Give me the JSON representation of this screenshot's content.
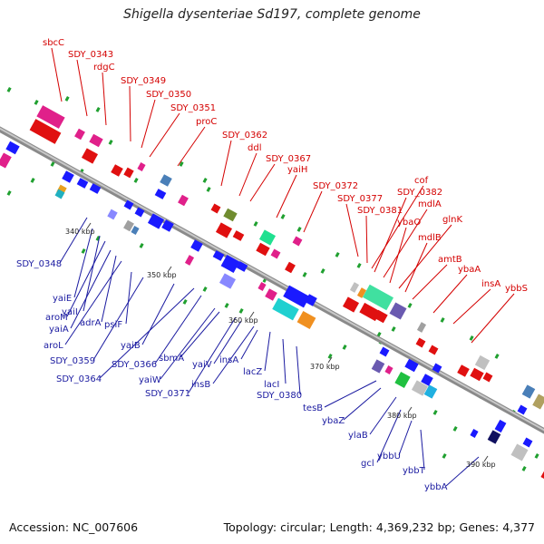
{
  "title": "Shigella dysenteriae Sd197, complete genome",
  "accession": "Accession: NC_007606",
  "summary": "Topology: circular; Length: 4,369,232 bp; Genes: 4,377",
  "colors": {
    "forward": "#d40000",
    "reverse": "#1a1aa0",
    "backbone": "#999999"
  },
  "ticks": [
    {
      "label": "340 kbp"
    },
    {
      "label": "350 kbp"
    },
    {
      "label": "360 kbp"
    },
    {
      "label": "370 kbp"
    },
    {
      "label": "380 kbp"
    },
    {
      "label": "390 kbp"
    }
  ],
  "forward_genes": [
    "sbcC",
    "SDY_0343",
    "rdgC",
    "SDY_0349",
    "SDY_0350",
    "SDY_0351",
    "proC",
    "SDY_0362",
    "ddl",
    "SDY_0367",
    "yaiH",
    "SDY_0372",
    "SDY_0377",
    "SDY_0381",
    "cof",
    "SDY_0382",
    "mdlA",
    "ybaO",
    "glnK",
    "mdlB",
    "amtB",
    "ybaA",
    "insA",
    "ybbS"
  ],
  "reverse_genes": [
    "SDY_0348",
    "yaiE",
    "yaiI",
    "aroM",
    "yaiA",
    "adrA",
    "aroL",
    "psiF",
    "SDY_0359",
    "yaiB",
    "SDY_0364",
    "SDY_0366",
    "yaiW",
    "sbmA",
    "SDY_0371",
    "yaiV",
    "insB",
    "insA",
    "lacZ",
    "lacI",
    "SDY_0380",
    "tesB",
    "ybaZ",
    "ylaB",
    "gcl",
    "ybbU",
    "ybbT",
    "ybbA"
  ]
}
